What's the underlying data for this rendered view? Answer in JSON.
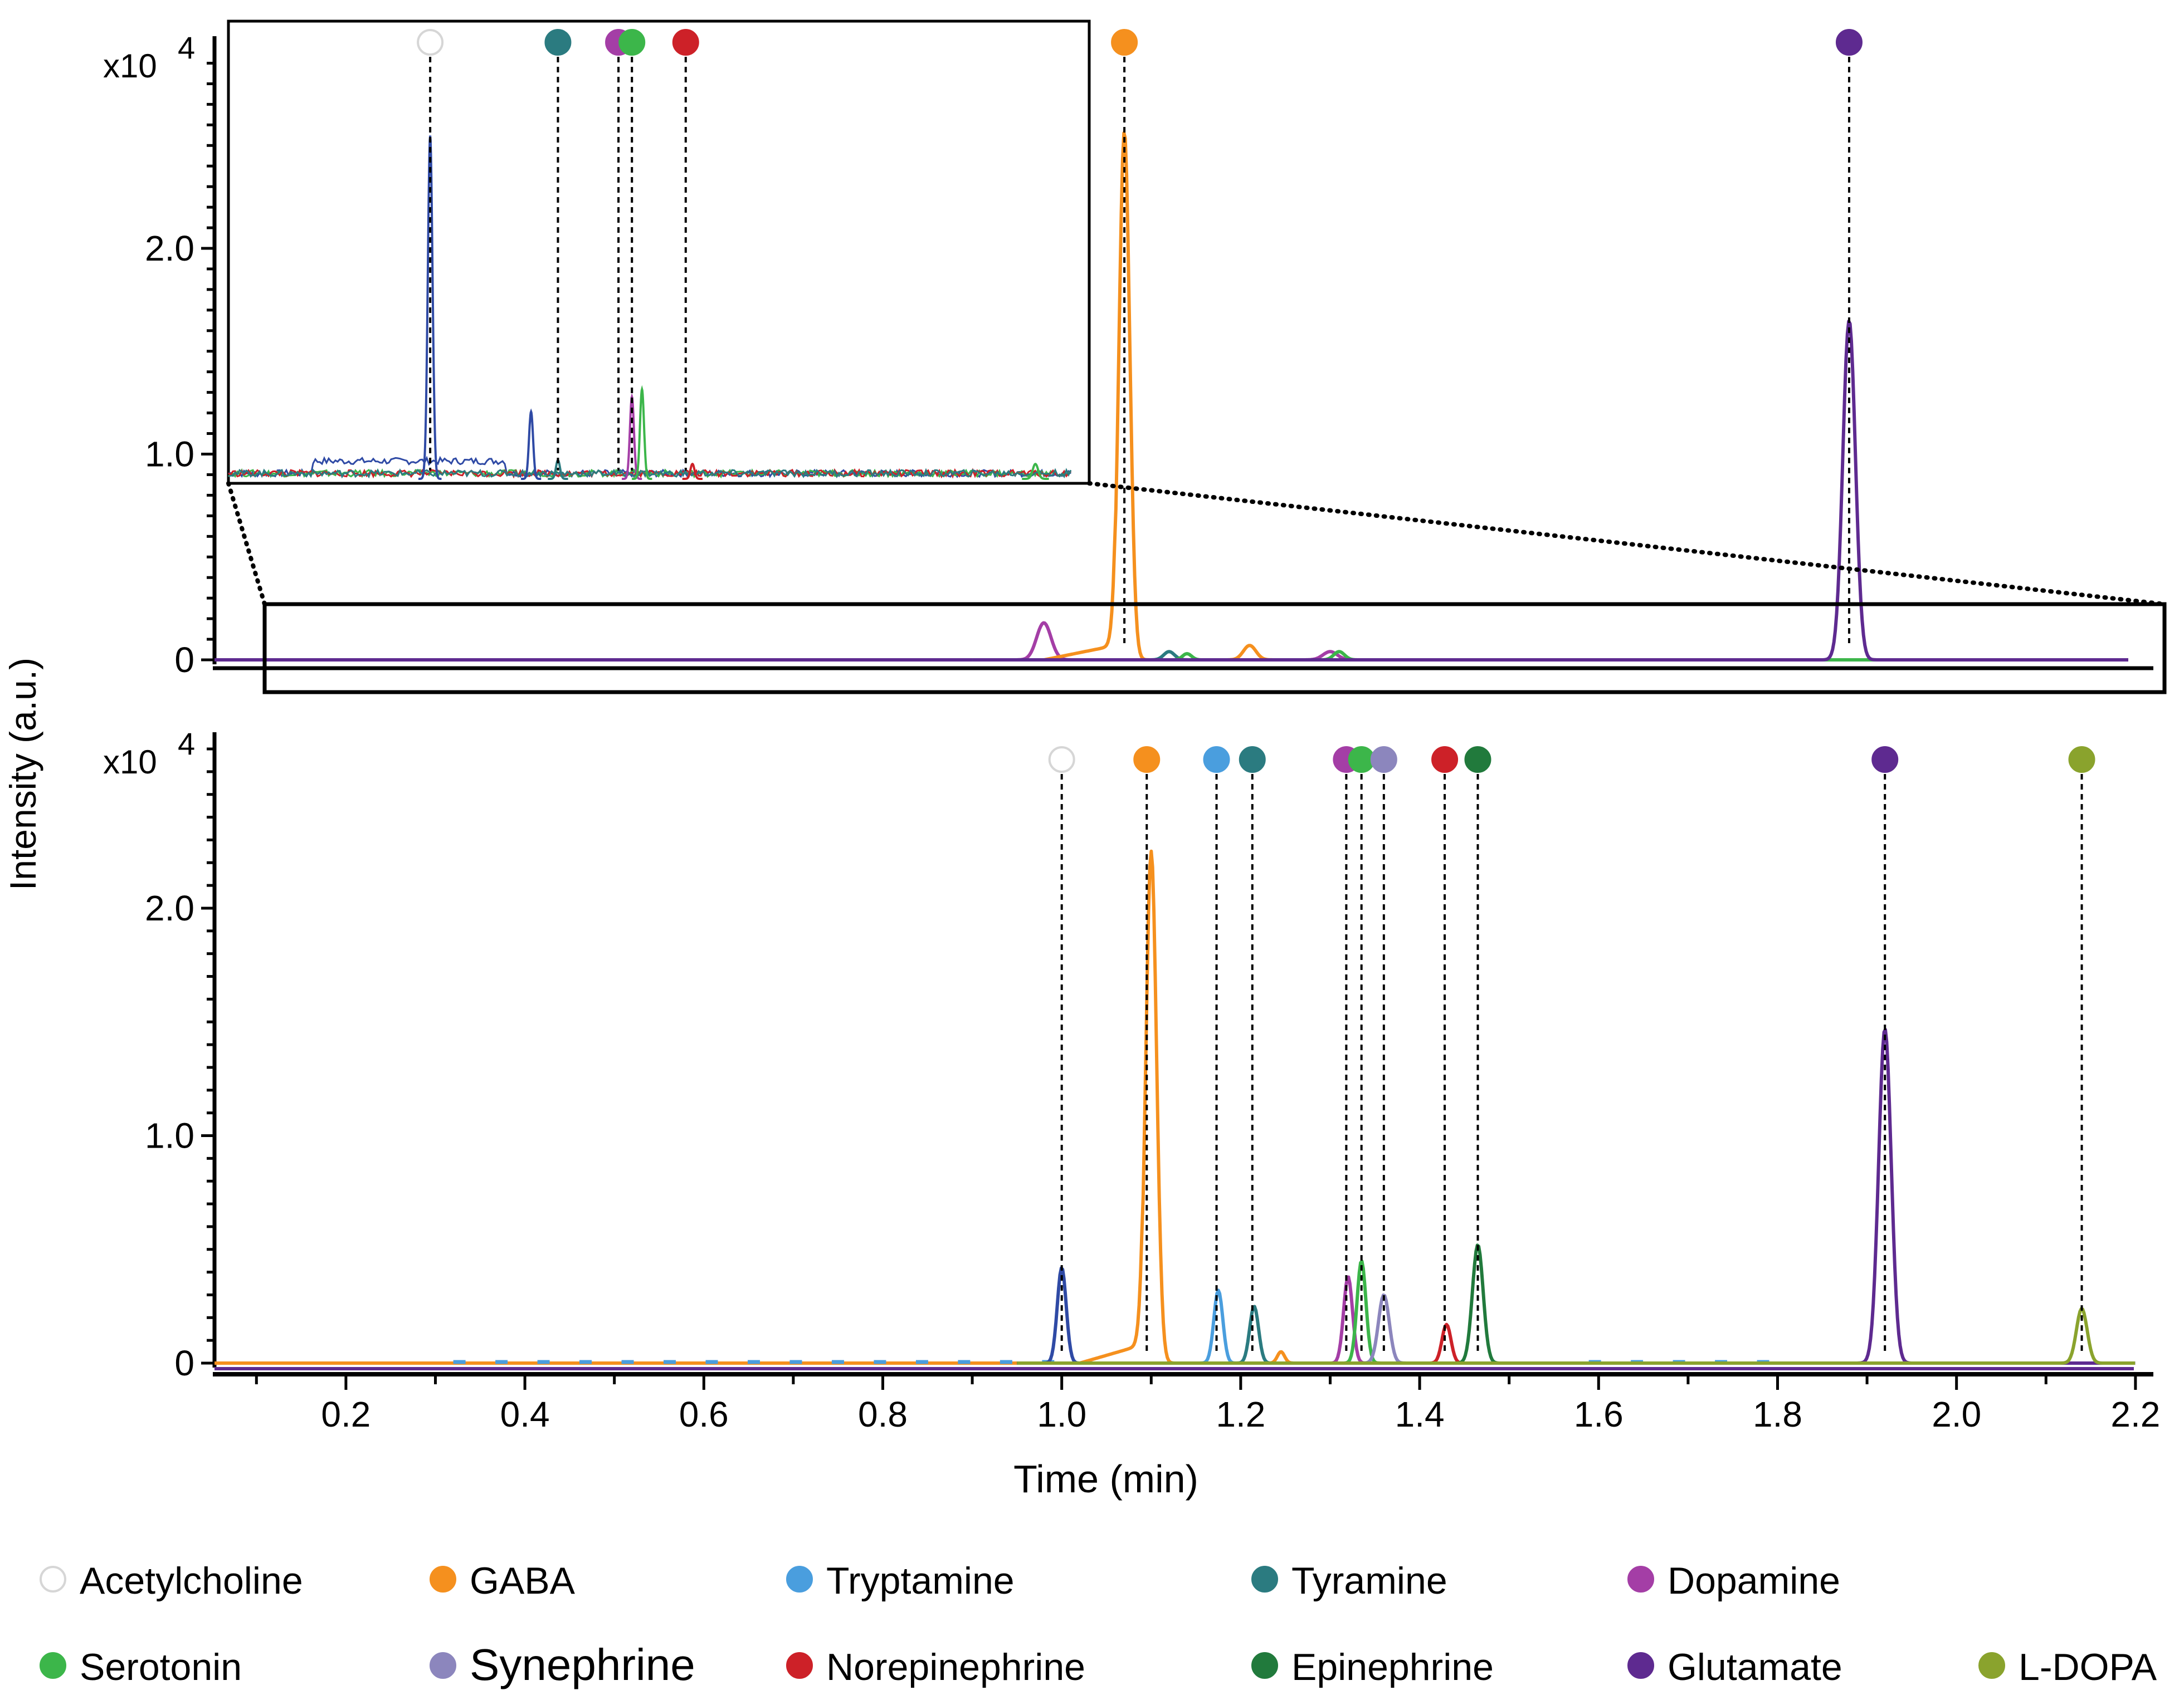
{
  "chart_data": [
    {
      "id": "top",
      "type": "line",
      "title": "",
      "xlabel": "",
      "ylabel": "Intensity (a.u.)",
      "multiplier": "x10",
      "multiplier_exp": "4",
      "xlim": [
        0.05,
        2.22
      ],
      "ylim": [
        0,
        2.95
      ],
      "yticks": [
        {
          "value": 0,
          "label": "0"
        },
        {
          "value": 1.0,
          "label": "1.0"
        },
        {
          "value": 2.0,
          "label": "2.0"
        }
      ],
      "peaks": [
        {
          "compound": "Dopamine",
          "time": 0.98,
          "height": 0.18,
          "width": 0.008
        },
        {
          "compound": "GABA",
          "time": 1.07,
          "height": 2.57,
          "width": 0.006,
          "shoulder": [
            0.98,
            1.06,
            0.07
          ]
        },
        {
          "compound": "Tyramine",
          "time": 1.12,
          "height": 0.04,
          "width": 0.006
        },
        {
          "compound": "Serotonin",
          "time": 1.14,
          "height": 0.03,
          "width": 0.005
        },
        {
          "compound": "GABA",
          "time": 1.21,
          "height": 0.07,
          "width": 0.007
        },
        {
          "compound": "Dopamine",
          "time": 1.3,
          "height": 0.04,
          "width": 0.008
        },
        {
          "compound": "Serotonin",
          "time": 1.31,
          "height": 0.04,
          "width": 0.006
        },
        {
          "compound": "Glutamate",
          "time": 1.88,
          "height": 1.65,
          "width": 0.007
        }
      ],
      "markers": [
        {
          "compound": "GABA",
          "time": 1.07
        },
        {
          "compound": "Glutamate",
          "time": 1.88
        }
      ],
      "zoom_region": {
        "x": [
          0.1,
          2.22
        ],
        "y": [
          -0.15,
          0.27
        ]
      }
    },
    {
      "id": "inset",
      "type": "line",
      "description_free": true,
      "xlim": [
        0.1,
        2.22
      ],
      "peaks": [
        {
          "compound": "Acetylcholine-trace",
          "time": 0.97,
          "height": 0.92,
          "width": 0.0035
        },
        {
          "compound": "Acetylcholine-trace",
          "time": 1.12,
          "height": 0.18,
          "width": 0.003
        },
        {
          "compound": "Tyramine",
          "time": 1.16,
          "height": 0.05,
          "width": 0.003
        },
        {
          "compound": "Dopamine",
          "time": 1.27,
          "height": 0.22,
          "width": 0.003
        },
        {
          "compound": "Serotonin",
          "time": 1.285,
          "height": 0.24,
          "width": 0.003
        },
        {
          "compound": "Norepinephrine",
          "time": 1.36,
          "height": 0.04,
          "width": 0.003
        },
        {
          "compound": "Serotonin",
          "time": 1.87,
          "height": 0.04,
          "width": 0.004
        }
      ],
      "markers": [
        {
          "compound": "Acetylcholine",
          "time": 0.97
        },
        {
          "compound": "Tyramine",
          "time": 1.16
        },
        {
          "compound": "Dopamine",
          "time": 1.25
        },
        {
          "compound": "Serotonin",
          "time": 1.27
        },
        {
          "compound": "Norepinephrine",
          "time": 1.35
        }
      ]
    },
    {
      "id": "bottom",
      "type": "line",
      "title": "",
      "xlabel": "Time (min)",
      "ylabel": "Intensity (a.u.)",
      "multiplier": "x10",
      "multiplier_exp": "4",
      "xlim": [
        0.05,
        2.22
      ],
      "ylim": [
        0,
        2.7
      ],
      "xticks": [
        {
          "value": 0.2,
          "label": "0.2"
        },
        {
          "value": 0.4,
          "label": "0.4"
        },
        {
          "value": 0.6,
          "label": "0.6"
        },
        {
          "value": 0.8,
          "label": "0.8"
        },
        {
          "value": 1.0,
          "label": "1.0"
        },
        {
          "value": 1.2,
          "label": "1.2"
        },
        {
          "value": 1.4,
          "label": "1.4"
        },
        {
          "value": 1.6,
          "label": "1.6"
        },
        {
          "value": 1.8,
          "label": "1.8"
        },
        {
          "value": 2.0,
          "label": "2.0"
        },
        {
          "value": 2.2,
          "label": "2.2"
        }
      ],
      "yticks": [
        {
          "value": 0,
          "label": "0"
        },
        {
          "value": 1.0,
          "label": "1.0"
        },
        {
          "value": 2.0,
          "label": "2.0"
        }
      ],
      "peaks": [
        {
          "compound": "Dopamine-blue",
          "time": 1.0,
          "height": 0.42,
          "width": 0.005
        },
        {
          "compound": "GABA",
          "time": 1.1,
          "height": 2.25,
          "width": 0.006,
          "shoulder": [
            1.02,
            1.09,
            0.08
          ]
        },
        {
          "compound": "Tryptamine",
          "time": 1.175,
          "height": 0.32,
          "width": 0.005
        },
        {
          "compound": "Tyramine",
          "time": 1.215,
          "height": 0.25,
          "width": 0.005
        },
        {
          "compound": "GABA",
          "time": 1.245,
          "height": 0.05,
          "width": 0.004
        },
        {
          "compound": "Dopamine",
          "time": 1.32,
          "height": 0.38,
          "width": 0.005
        },
        {
          "compound": "Serotonin",
          "time": 1.335,
          "height": 0.45,
          "width": 0.005
        },
        {
          "compound": "Synephrine",
          "time": 1.36,
          "height": 0.3,
          "width": 0.006
        },
        {
          "compound": "Norepinephrine",
          "time": 1.43,
          "height": 0.17,
          "width": 0.005
        },
        {
          "compound": "Epinephrine",
          "time": 1.465,
          "height": 0.52,
          "width": 0.006
        },
        {
          "compound": "Glutamate",
          "time": 1.92,
          "height": 1.47,
          "width": 0.007
        },
        {
          "compound": "L-DOPA",
          "time": 2.14,
          "height": 0.24,
          "width": 0.006
        }
      ],
      "markers": [
        {
          "compound": "Acetylcholine",
          "time": 1.0
        },
        {
          "compound": "GABA",
          "time": 1.095
        },
        {
          "compound": "Tryptamine",
          "time": 1.173
        },
        {
          "compound": "Tyramine",
          "time": 1.213
        },
        {
          "compound": "Dopamine",
          "time": 1.318
        },
        {
          "compound": "Serotonin",
          "time": 1.335
        },
        {
          "compound": "Synephrine",
          "time": 1.36
        },
        {
          "compound": "Norepinephrine",
          "time": 1.428
        },
        {
          "compound": "Epinephrine",
          "time": 1.465
        },
        {
          "compound": "Glutamate",
          "time": 1.92
        },
        {
          "compound": "L-DOPA",
          "time": 2.14
        }
      ]
    }
  ],
  "legend": [
    {
      "name": "Acetylcholine",
      "color": "#ffffff",
      "stroke": "#d6d6d6",
      "line": "#3a4ea6"
    },
    {
      "name": "GABA",
      "color": "#f5901e",
      "stroke": "#f5901e",
      "line": "#f5901e"
    },
    {
      "name": "Tryptamine",
      "color": "#4a9ede",
      "stroke": "#4a9ede",
      "line": "#4a9ede"
    },
    {
      "name": "Tyramine",
      "color": "#2b7b80",
      "stroke": "#2b7b80",
      "line": "#2b7b80"
    },
    {
      "name": "Dopamine",
      "color": "#a43ea6",
      "stroke": "#a43ea6",
      "line": "#a43ea6"
    },
    {
      "name": "Serotonin",
      "color": "#3cb64a",
      "stroke": "#3cb64a",
      "line": "#3cb64a"
    },
    {
      "name": "Synephrine",
      "color": "#8c86bd",
      "stroke": "#8c86bd",
      "line": "#8c86bd"
    },
    {
      "name": "Norepinephrine",
      "color": "#cd2128",
      "stroke": "#cd2128",
      "line": "#cd2128"
    },
    {
      "name": "Epinephrine",
      "color": "#217a3c",
      "stroke": "#217a3c",
      "line": "#217a3c"
    },
    {
      "name": "Glutamate",
      "color": "#5e2a90",
      "stroke": "#5e2a90",
      "line": "#5e2a90"
    },
    {
      "name": "L-DOPA",
      "color": "#8aa32d",
      "stroke": "#8aa32d",
      "line": "#8aa32d"
    }
  ],
  "colors": {
    "dopamine_blue": "#2f4aa5",
    "axis": "#000000",
    "guide": "#000000"
  }
}
